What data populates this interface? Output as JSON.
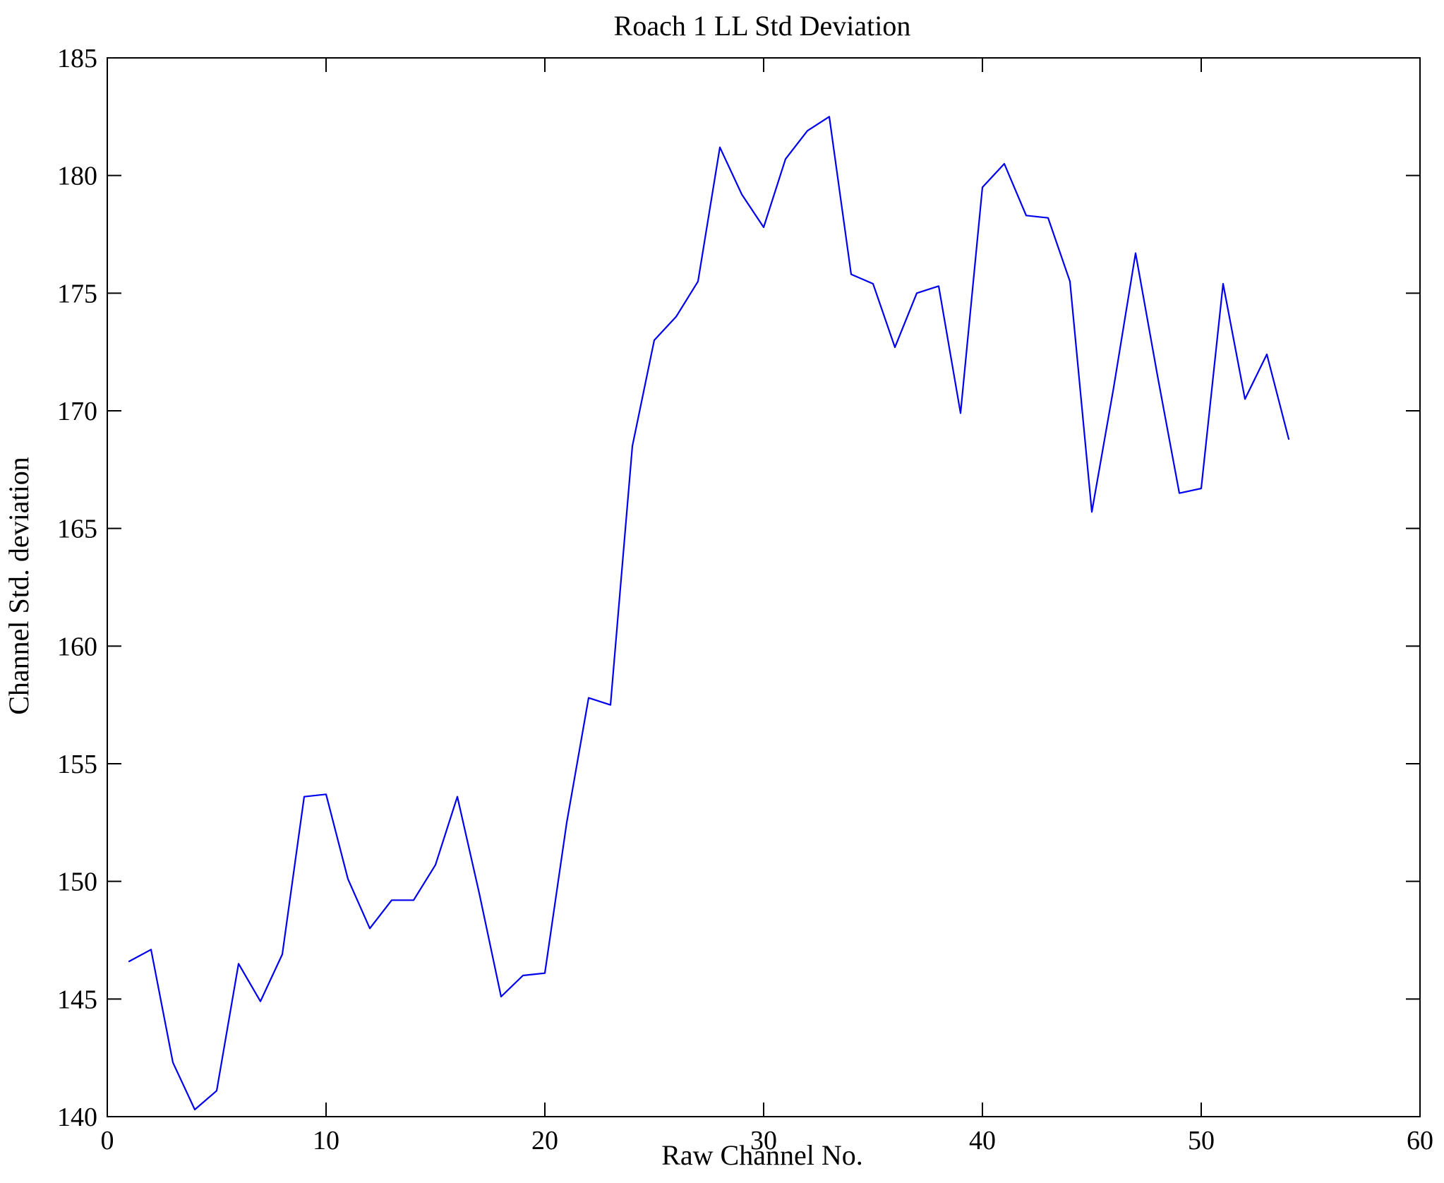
{
  "chart_data": {
    "type": "line",
    "title": "Roach 1 LL Std Deviation",
    "xlabel": "Raw Channel No.",
    "ylabel": "Channel Std. deviation",
    "xlim": [
      0,
      60
    ],
    "ylim": [
      140,
      185
    ],
    "xticks": [
      0,
      10,
      20,
      30,
      40,
      50,
      60
    ],
    "yticks": [
      140,
      145,
      150,
      155,
      160,
      165,
      170,
      175,
      180,
      185
    ],
    "grid": false,
    "line_color": "#0000ee",
    "axis_color": "#000000",
    "x": [
      1,
      2,
      3,
      4,
      5,
      6,
      7,
      8,
      9,
      10,
      11,
      12,
      13,
      14,
      15,
      16,
      17,
      18,
      19,
      20,
      21,
      22,
      23,
      24,
      25,
      26,
      27,
      28,
      29,
      30,
      31,
      32,
      33,
      34,
      35,
      36,
      37,
      38,
      39,
      40,
      41,
      42,
      43,
      44,
      45,
      46,
      47,
      48,
      49,
      50,
      51,
      52,
      53,
      54
    ],
    "values": [
      146.6,
      147.1,
      142.3,
      140.3,
      141.1,
      146.5,
      144.9,
      146.9,
      153.6,
      153.7,
      150.1,
      148.0,
      149.2,
      149.2,
      150.7,
      153.6,
      149.5,
      145.1,
      146.0,
      146.1,
      152.5,
      157.8,
      157.5,
      168.5,
      173.0,
      174.0,
      175.5,
      181.2,
      179.2,
      177.8,
      180.7,
      181.9,
      182.5,
      175.8,
      175.4,
      172.7,
      175.0,
      175.3,
      169.9,
      179.5,
      180.5,
      178.3,
      178.2,
      175.5,
      165.7,
      171.0,
      176.7,
      171.5,
      166.5,
      166.7,
      175.4,
      170.5,
      172.4,
      168.8
    ]
  }
}
